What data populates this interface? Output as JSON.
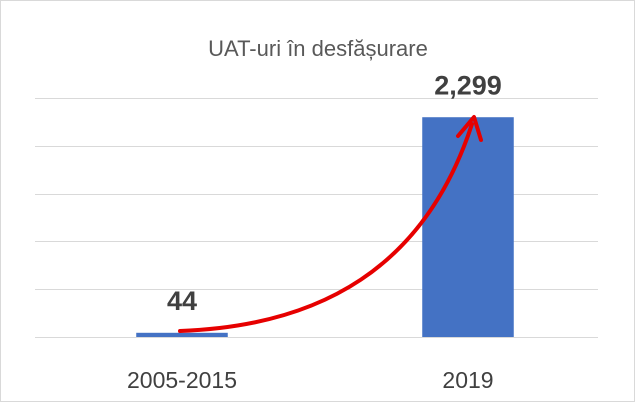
{
  "chart_data": {
    "type": "bar",
    "title": "UAT-uri în desfășurare",
    "categories": [
      "2005-2015",
      "2019"
    ],
    "values": [
      44,
      2299
    ],
    "value_labels": [
      "44",
      "2,299"
    ],
    "color": "#4472c4",
    "ylim": [
      0,
      2500
    ],
    "yticks": [
      0,
      500,
      1000,
      1500,
      2000,
      2500
    ],
    "grid": true
  }
}
